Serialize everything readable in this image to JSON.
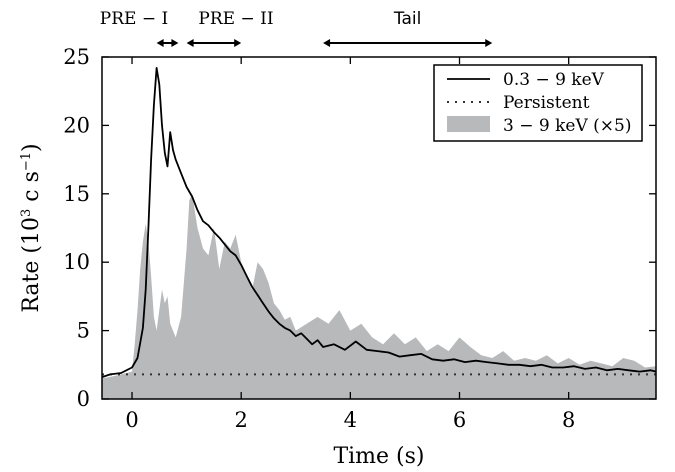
{
  "chart_data": {
    "type": "area",
    "xlabel": "Time (s)",
    "ylabel": "Rate (10",
    "ylabel_exp1": "3",
    "ylabel_mid": " c s",
    "ylabel_exp2": "−1",
    "ylabel_end": ")",
    "xlim": [
      -0.55,
      9.6
    ],
    "ylim": [
      0,
      25
    ],
    "xticks": [
      0,
      2,
      4,
      6,
      8
    ],
    "yticks": [
      0,
      5,
      10,
      15,
      20,
      25
    ],
    "legend_position": "top-right",
    "intervals": [
      {
        "label": "PRE − I",
        "start": 0.45,
        "end": 0.85
      },
      {
        "label": "PRE − II",
        "start": 1.0,
        "end": 2.0
      },
      {
        "label": "Tail",
        "start": 3.5,
        "end": 6.6
      }
    ],
    "series": [
      {
        "name": "0.3 − 9 keV",
        "style": "solid",
        "color": "#000000",
        "x": [
          -0.55,
          -0.4,
          -0.2,
          0.0,
          0.1,
          0.2,
          0.25,
          0.3,
          0.35,
          0.4,
          0.45,
          0.5,
          0.55,
          0.6,
          0.65,
          0.7,
          0.75,
          0.8,
          0.9,
          1.0,
          1.1,
          1.2,
          1.3,
          1.4,
          1.5,
          1.6,
          1.7,
          1.8,
          1.9,
          2.0,
          2.1,
          2.2,
          2.3,
          2.4,
          2.5,
          2.6,
          2.7,
          2.8,
          2.9,
          3.0,
          3.1,
          3.2,
          3.3,
          3.4,
          3.5,
          3.7,
          3.9,
          4.1,
          4.3,
          4.5,
          4.7,
          4.9,
          5.1,
          5.3,
          5.5,
          5.7,
          5.9,
          6.1,
          6.3,
          6.5,
          6.7,
          6.9,
          7.1,
          7.3,
          7.5,
          7.7,
          7.9,
          8.1,
          8.3,
          8.5,
          8.7,
          8.9,
          9.1,
          9.3,
          9.5,
          9.6
        ],
        "values": [
          1.6,
          1.8,
          1.9,
          2.3,
          3.0,
          5.2,
          8.0,
          12.5,
          17.5,
          21.5,
          24.2,
          23.0,
          20.0,
          18.0,
          17.0,
          19.5,
          18.2,
          17.5,
          16.5,
          15.5,
          14.8,
          13.8,
          13.0,
          12.7,
          12.2,
          11.8,
          11.3,
          10.8,
          10.5,
          9.8,
          9.0,
          8.2,
          7.6,
          7.0,
          6.4,
          5.9,
          5.5,
          5.2,
          5.0,
          4.6,
          4.8,
          4.4,
          4.0,
          4.3,
          3.8,
          4.0,
          3.6,
          4.2,
          3.6,
          3.5,
          3.4,
          3.1,
          3.2,
          3.3,
          2.9,
          2.8,
          2.9,
          2.7,
          2.8,
          2.7,
          2.6,
          2.5,
          2.5,
          2.4,
          2.5,
          2.3,
          2.3,
          2.4,
          2.2,
          2.3,
          2.1,
          2.2,
          2.1,
          2.0,
          2.1,
          2.0
        ]
      },
      {
        "name": "Persistent",
        "style": "dotted",
        "color": "#333333",
        "x": [
          -0.55,
          9.6
        ],
        "values": [
          1.8,
          1.8
        ]
      },
      {
        "name": "3 − 9 keV (×5)",
        "style": "filled",
        "color": "#b8b9bb",
        "x": [
          -0.55,
          -0.3,
          0.0,
          0.05,
          0.1,
          0.15,
          0.2,
          0.25,
          0.3,
          0.35,
          0.4,
          0.45,
          0.5,
          0.55,
          0.6,
          0.65,
          0.7,
          0.8,
          0.9,
          1.0,
          1.05,
          1.1,
          1.2,
          1.3,
          1.4,
          1.5,
          1.6,
          1.7,
          1.8,
          1.9,
          2.0,
          2.1,
          2.2,
          2.3,
          2.4,
          2.5,
          2.6,
          2.7,
          2.8,
          2.9,
          3.0,
          3.2,
          3.4,
          3.6,
          3.8,
          4.0,
          4.2,
          4.4,
          4.6,
          4.8,
          5.0,
          5.2,
          5.4,
          5.6,
          5.8,
          6.0,
          6.2,
          6.4,
          6.6,
          6.8,
          7.0,
          7.2,
          7.4,
          7.6,
          7.8,
          8.0,
          8.2,
          8.4,
          8.6,
          8.8,
          9.0,
          9.2,
          9.4,
          9.6
        ],
        "values": [
          1.5,
          1.7,
          2.0,
          4.0,
          6.5,
          9.5,
          11.5,
          12.8,
          11.5,
          9.0,
          6.0,
          5.0,
          6.5,
          8.0,
          7.0,
          7.5,
          5.5,
          4.5,
          6.0,
          11.0,
          14.5,
          15.0,
          12.5,
          11.0,
          10.5,
          12.5,
          9.5,
          11.5,
          11.0,
          12.0,
          10.0,
          9.0,
          8.0,
          10.0,
          9.5,
          8.5,
          7.0,
          6.5,
          5.8,
          6.0,
          5.0,
          5.5,
          6.0,
          5.5,
          6.5,
          5.0,
          5.5,
          4.5,
          4.0,
          4.8,
          4.0,
          4.5,
          3.5,
          4.0,
          3.5,
          4.5,
          3.8,
          3.2,
          3.0,
          3.5,
          2.8,
          3.0,
          2.8,
          3.2,
          2.6,
          3.0,
          2.5,
          2.8,
          2.6,
          2.4,
          3.0,
          2.8,
          2.3,
          2.4
        ]
      }
    ]
  }
}
